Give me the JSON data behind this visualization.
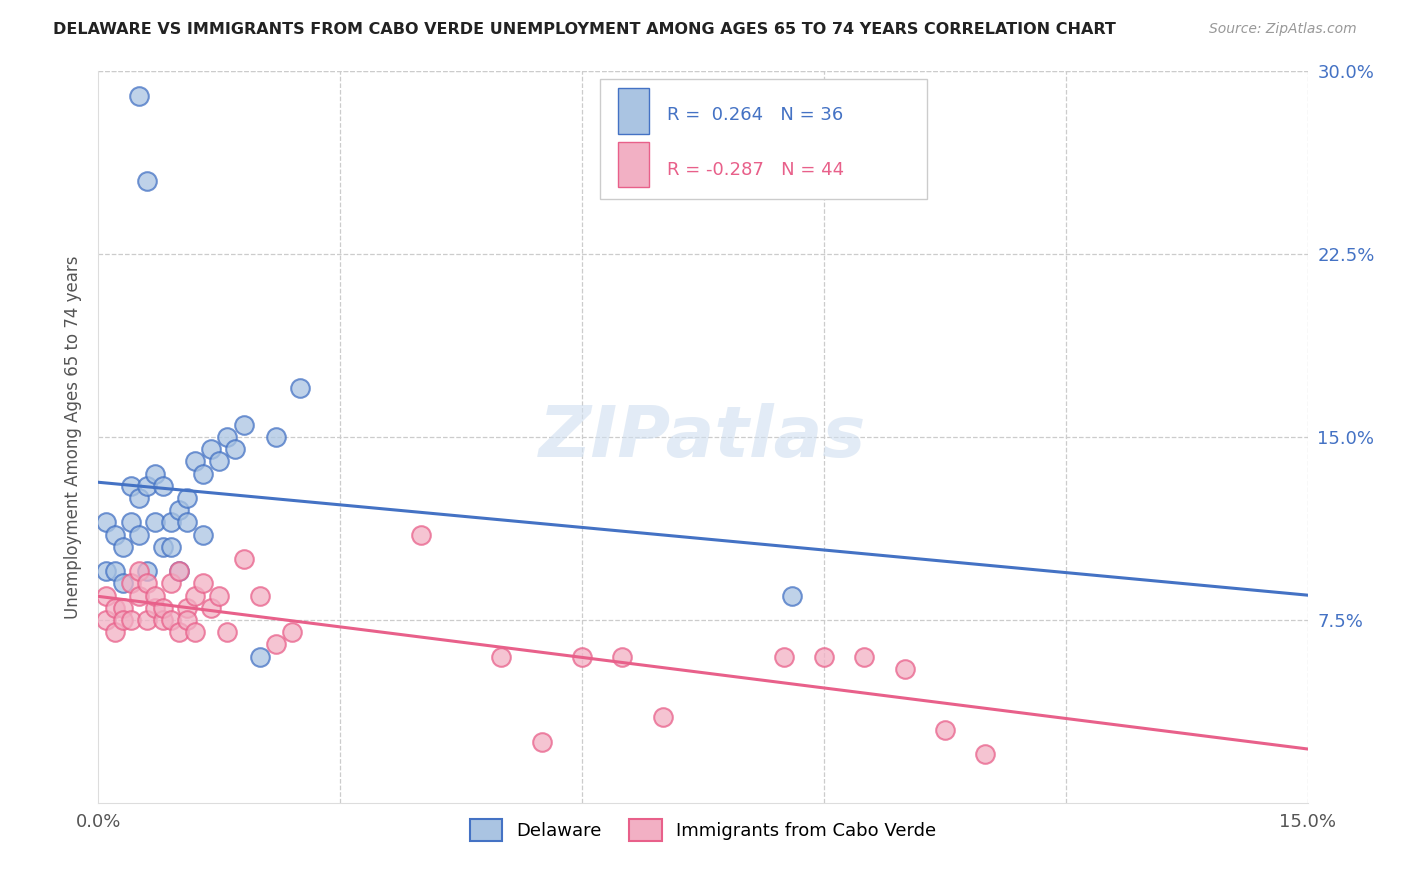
{
  "title": "DELAWARE VS IMMIGRANTS FROM CABO VERDE UNEMPLOYMENT AMONG AGES 65 TO 74 YEARS CORRELATION CHART",
  "source": "Source: ZipAtlas.com",
  "ylabel": "Unemployment Among Ages 65 to 74 years",
  "xlim": [
    0,
    0.15
  ],
  "ylim": [
    0,
    0.3
  ],
  "yticks_right": [
    0.0,
    0.075,
    0.15,
    0.225,
    0.3
  ],
  "ytick_labels_right": [
    "",
    "7.5%",
    "15.0%",
    "22.5%",
    "30.0%"
  ],
  "legend_labels": [
    "Delaware",
    "Immigrants from Cabo Verde"
  ],
  "delaware_color": "#aac4e2",
  "cabo_verde_color": "#f2b0c4",
  "delaware_line_color": "#4472c4",
  "cabo_verde_line_color": "#e8608a",
  "R_delaware": 0.264,
  "N_delaware": 36,
  "R_cabo_verde": -0.287,
  "N_cabo_verde": 44,
  "watermark": "ZIPatlas",
  "background_color": "#ffffff",
  "delaware_x": [
    0.001,
    0.001,
    0.002,
    0.002,
    0.003,
    0.003,
    0.004,
    0.004,
    0.005,
    0.005,
    0.006,
    0.006,
    0.007,
    0.007,
    0.008,
    0.008,
    0.009,
    0.009,
    0.01,
    0.01,
    0.011,
    0.011,
    0.012,
    0.013,
    0.013,
    0.014,
    0.015,
    0.016,
    0.017,
    0.018,
    0.02,
    0.022,
    0.025,
    0.086,
    0.005,
    0.006
  ],
  "delaware_y": [
    0.095,
    0.115,
    0.11,
    0.095,
    0.105,
    0.09,
    0.13,
    0.115,
    0.11,
    0.125,
    0.13,
    0.095,
    0.135,
    0.115,
    0.13,
    0.105,
    0.105,
    0.115,
    0.12,
    0.095,
    0.125,
    0.115,
    0.14,
    0.135,
    0.11,
    0.145,
    0.14,
    0.15,
    0.145,
    0.155,
    0.06,
    0.15,
    0.17,
    0.085,
    0.29,
    0.255
  ],
  "cabo_verde_x": [
    0.001,
    0.001,
    0.002,
    0.002,
    0.003,
    0.003,
    0.004,
    0.004,
    0.005,
    0.005,
    0.006,
    0.006,
    0.007,
    0.007,
    0.008,
    0.008,
    0.009,
    0.009,
    0.01,
    0.01,
    0.011,
    0.011,
    0.012,
    0.012,
    0.013,
    0.014,
    0.015,
    0.016,
    0.018,
    0.02,
    0.022,
    0.024,
    0.04,
    0.05,
    0.055,
    0.06,
    0.065,
    0.07,
    0.085,
    0.09,
    0.095,
    0.1,
    0.105,
    0.11
  ],
  "cabo_verde_y": [
    0.085,
    0.075,
    0.08,
    0.07,
    0.08,
    0.075,
    0.09,
    0.075,
    0.085,
    0.095,
    0.075,
    0.09,
    0.08,
    0.085,
    0.075,
    0.08,
    0.09,
    0.075,
    0.095,
    0.07,
    0.08,
    0.075,
    0.085,
    0.07,
    0.09,
    0.08,
    0.085,
    0.07,
    0.1,
    0.085,
    0.065,
    0.07,
    0.11,
    0.06,
    0.025,
    0.06,
    0.06,
    0.035,
    0.06,
    0.06,
    0.06,
    0.055,
    0.03,
    0.02
  ]
}
